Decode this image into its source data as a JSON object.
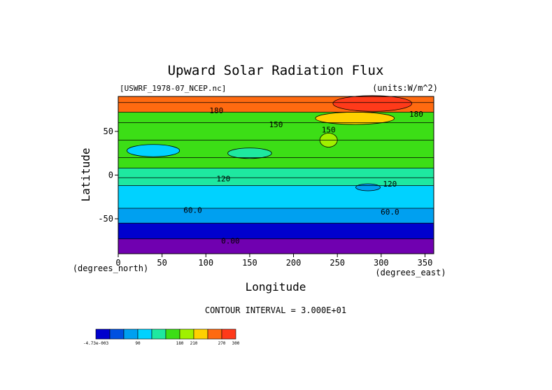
{
  "chart_data": {
    "type": "heatmap",
    "title": "Upward Solar Radiation Flux",
    "file_label": "[USWRF_1978-07_NCEP.nc]",
    "units_label": "(units:W/m^2)",
    "xlabel": "Longitude",
    "ylabel": "Latitude",
    "x_unit_label": "(degrees_east)",
    "y_unit_label": "(degrees_north)",
    "xlim": [
      0,
      360
    ],
    "ylim": [
      -90,
      90
    ],
    "x_ticks": [
      0,
      50,
      100,
      150,
      200,
      250,
      300,
      350
    ],
    "y_ticks": [
      -50,
      0,
      50
    ],
    "contour_interval_text": "CONTOUR INTERVAL = 3.000E+01",
    "contour_labels": [
      {
        "text": "180",
        "lon": 112,
        "lat": 74
      },
      {
        "text": "180",
        "lon": 340,
        "lat": 70
      },
      {
        "text": "150",
        "lon": 180,
        "lat": 58
      },
      {
        "text": "150",
        "lon": 240,
        "lat": 52
      },
      {
        "text": "120",
        "lon": 120,
        "lat": -4
      },
      {
        "text": "120",
        "lon": 310,
        "lat": -10
      },
      {
        "text": "60.0",
        "lon": 85,
        "lat": -40
      },
      {
        "text": "60.0",
        "lon": 310,
        "lat": -42
      },
      {
        "text": "0.00",
        "lon": 128,
        "lat": -75
      }
    ],
    "levels": [
      {
        "from": 270,
        "to": 300,
        "color": "#ff3a1a"
      },
      {
        "from": 240,
        "to": 270,
        "color": "#ff6a10"
      },
      {
        "from": 210,
        "to": 240,
        "color": "#ffd000"
      },
      {
        "from": 180,
        "to": 210,
        "color": "#a0f000"
      },
      {
        "from": 150,
        "to": 180,
        "color": "#3cde16"
      },
      {
        "from": 120,
        "to": 150,
        "color": "#1ee8a0"
      },
      {
        "from": 90,
        "to": 120,
        "color": "#00d2ff"
      },
      {
        "from": 60,
        "to": 90,
        "color": "#00a0f0"
      },
      {
        "from": 30,
        "to": 60,
        "color": "#0050e0"
      },
      {
        "from": 0,
        "to": 30,
        "color": "#0000cd"
      },
      {
        "from": -30,
        "to": 0,
        "color": "#7000b0"
      }
    ],
    "latitude_bands": [
      {
        "lat_from": 90,
        "lat_to": 83,
        "value": 250
      },
      {
        "lat_from": 83,
        "lat_to": 72,
        "value": 240
      },
      {
        "lat_from": 72,
        "lat_to": 60,
        "value": 175
      },
      {
        "lat_from": 60,
        "lat_to": 40,
        "value": 165
      },
      {
        "lat_from": 40,
        "lat_to": 20,
        "value": 150
      },
      {
        "lat_from": 20,
        "lat_to": 8,
        "value": 170
      },
      {
        "lat_from": 8,
        "lat_to": -3,
        "value": 140
      },
      {
        "lat_from": -3,
        "lat_to": -12,
        "value": 125
      },
      {
        "lat_from": -12,
        "lat_to": -38,
        "value": 100
      },
      {
        "lat_from": -38,
        "lat_to": -55,
        "value": 70
      },
      {
        "lat_from": -55,
        "lat_to": -73,
        "value": 20
      },
      {
        "lat_from": -73,
        "lat_to": -90,
        "value": -10
      }
    ],
    "regional_patches": [
      {
        "lon": 290,
        "lat": 82,
        "rx": 45,
        "ry": 9,
        "value": 275
      },
      {
        "lon": 240,
        "lat": 40,
        "rx": 10,
        "ry": 8,
        "value": 195
      },
      {
        "lon": 40,
        "lat": 28,
        "rx": 30,
        "ry": 7,
        "value": 90
      },
      {
        "lon": 150,
        "lat": 25,
        "rx": 25,
        "ry": 6,
        "value": 135
      },
      {
        "lon": 270,
        "lat": 65,
        "rx": 45,
        "ry": 7,
        "value": 210
      },
      {
        "lon": 285,
        "lat": -14,
        "rx": 14,
        "ry": 4,
        "value": 60
      }
    ],
    "colorbar": {
      "labels": [
        "-4.73e-003",
        "90",
        "180",
        "210",
        "270",
        "300"
      ],
      "label_positions": [
        0,
        90,
        180,
        210,
        270,
        300
      ],
      "range": [
        0,
        300
      ],
      "colors": [
        "#0000cd",
        "#0050e0",
        "#00a0f0",
        "#00d2ff",
        "#1ee8a0",
        "#3cde16",
        "#a0f000",
        "#ffd000",
        "#ff6a10",
        "#ff3a1a"
      ]
    }
  }
}
